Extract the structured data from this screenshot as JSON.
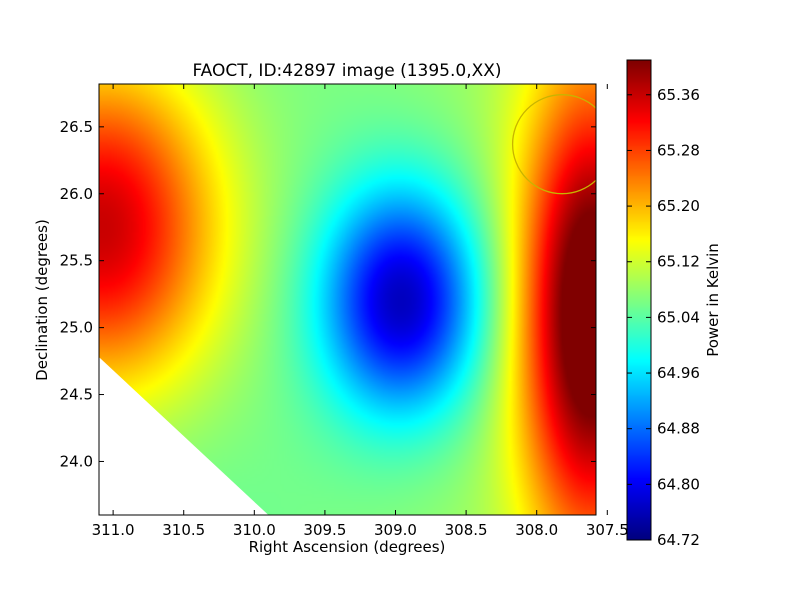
{
  "chart_data": {
    "type": "heatmap",
    "title": "FAOCT, ID:42897 image (1395.0,XX)",
    "xlabel": "Right Ascension (degrees)",
    "ylabel": "Declination (degrees)",
    "xlim": [
      311.1,
      307.58
    ],
    "ylim": [
      23.6,
      26.82
    ],
    "x_reversed": true,
    "x_ticks": [
      311.0,
      310.5,
      310.0,
      309.5,
      309.0,
      308.5,
      308.0,
      307.5
    ],
    "x_tick_labels": [
      "311.0",
      "310.5",
      "310.0",
      "309.5",
      "309.0",
      "308.5",
      "308.0",
      "307.5"
    ],
    "y_ticks": [
      24.0,
      24.5,
      25.0,
      25.5,
      26.0,
      26.5
    ],
    "y_tick_labels": [
      "24.0",
      "24.5",
      "25.0",
      "25.5",
      "26.0",
      "26.5"
    ],
    "colormap": "jet",
    "colorbar": {
      "label": "Power in Kelvin",
      "range": [
        64.72,
        65.41
      ],
      "ticks": [
        64.72,
        64.8,
        64.88,
        64.96,
        65.04,
        65.12,
        65.2,
        65.28,
        65.36
      ],
      "tick_labels": [
        "64.72",
        "64.80",
        "64.88",
        "64.96",
        "65.04",
        "65.12",
        "65.20",
        "65.28",
        "65.36"
      ]
    },
    "field": {
      "baseline": 65.03,
      "features": [
        {
          "name": "minimum",
          "ra": 308.95,
          "dec": 25.2,
          "amplitude": -0.31,
          "sigma_ra": 0.4,
          "sigma_dec": 0.6
        },
        {
          "name": "left maximum",
          "ra": 311.1,
          "dec": 25.75,
          "amplitude": 0.33,
          "sigma_ra": 0.6,
          "sigma_dec": 0.9
        },
        {
          "name": "right maximum",
          "ra": 307.62,
          "dec": 25.1,
          "amplitude": 0.38,
          "sigma_ra": 0.35,
          "sigma_dec": 1.2
        }
      ],
      "gradient_ra": 0.02,
      "no_data_region": "lower-left corner (RA > 309.9, below diagonal edge from (311.1, 24.78) to (309.9, 23.6))"
    },
    "overlay_circle": {
      "ra": 307.82,
      "dec": 26.37,
      "radius_deg": 0.37,
      "color": "#c8b400"
    },
    "grid": false,
    "legend": "colorbar-right"
  }
}
